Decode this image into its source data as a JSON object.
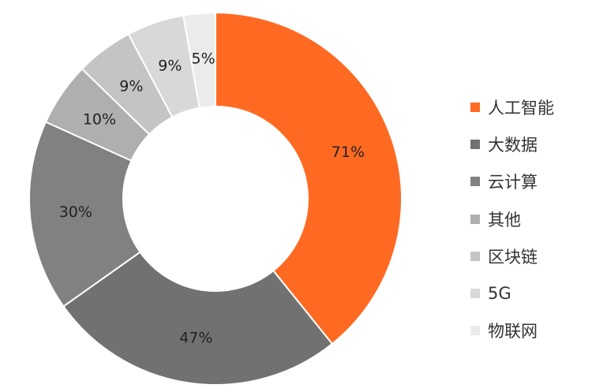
{
  "chart_data": {
    "type": "pie",
    "donut": true,
    "legend_position": "right",
    "categories": [
      "人工智能",
      "大数据",
      "云计算",
      "其他",
      "区块链",
      "5G",
      "物联网"
    ],
    "values": [
      71,
      47,
      30,
      10,
      9,
      9,
      5
    ],
    "labels": [
      "71%",
      "47%",
      "30%",
      "10%",
      "9%",
      "9%",
      "5%"
    ],
    "colors": [
      "#FF6A22",
      "#717171",
      "#818181",
      "#AFAFAF",
      "#C4C4C4",
      "#D8D8D8",
      "#EBEBEB"
    ]
  }
}
